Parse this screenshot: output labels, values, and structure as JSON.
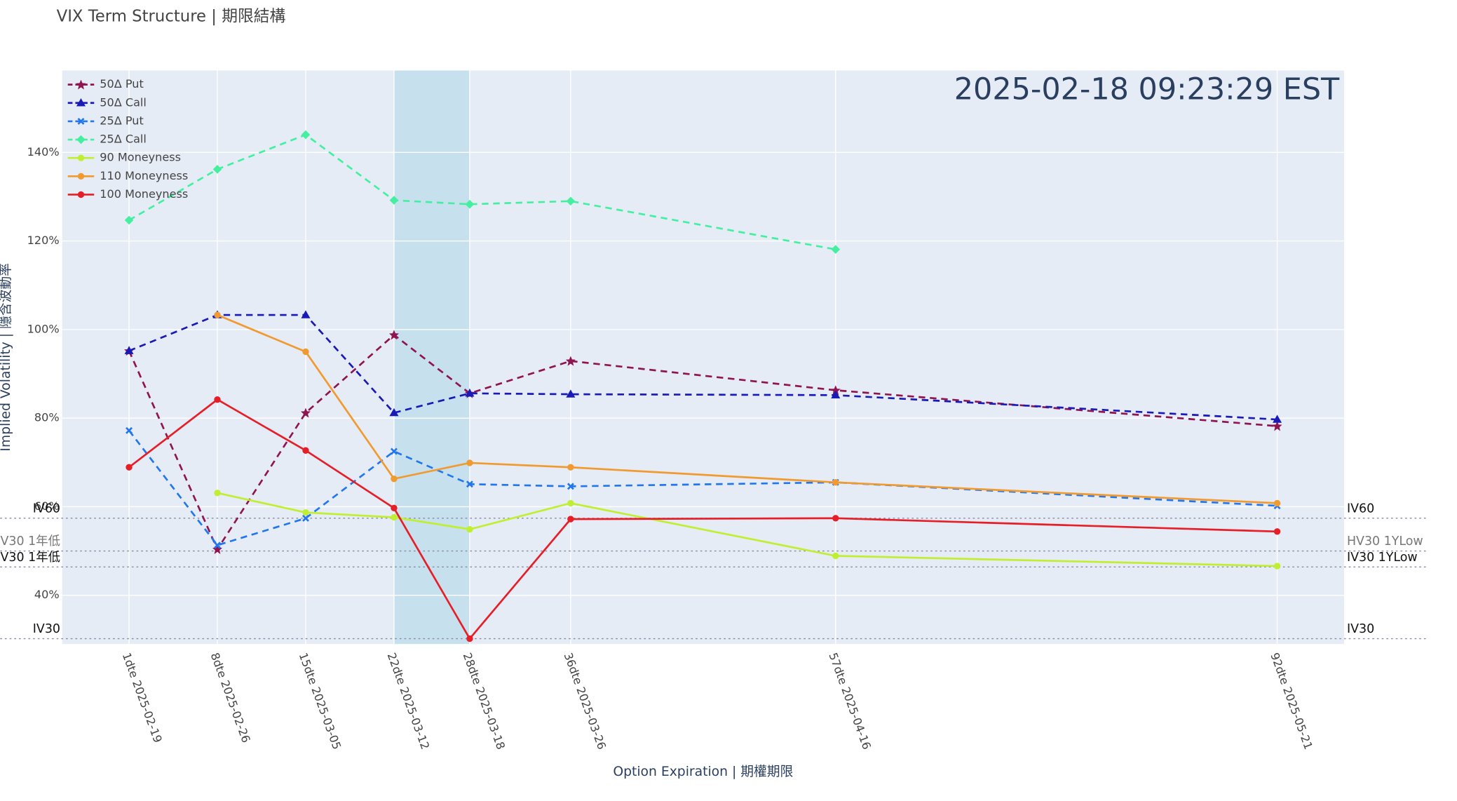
{
  "chart_data": {
    "type": "line",
    "title": "VIX Term Structure | 期限結構",
    "annotation": "2025-02-18 09:23:29 EST",
    "x_label": "Option Expiration | 期權期限",
    "y_label": "Implied Volatility | 隱含波動率",
    "x": [
      1,
      8,
      15,
      22,
      28,
      36,
      57,
      92
    ],
    "xlim": [
      -4.3,
      97.3
    ],
    "xticks": [
      {
        "value": 1,
        "label": "1dte 2025-02-19"
      },
      {
        "value": 8,
        "label": "8dte 2025-02-26"
      },
      {
        "value": 15,
        "label": "15dte 2025-03-05"
      },
      {
        "value": 22,
        "label": "22dte 2025-03-12"
      },
      {
        "value": 28,
        "label": "28dte 2025-03-18"
      },
      {
        "value": 36,
        "label": "36dte 2025-03-26"
      },
      {
        "value": 57,
        "label": "57dte 2025-04-16"
      },
      {
        "value": 92,
        "label": "92dte 2025-05-21"
      }
    ],
    "ylim": [
      29,
      158.5
    ],
    "yticks": [
      {
        "value": 40,
        "label": "40%"
      },
      {
        "value": 60,
        "label": "60%"
      },
      {
        "value": 80,
        "label": "80%"
      },
      {
        "value": 100,
        "label": "100%"
      },
      {
        "value": 120,
        "label": "120%"
      },
      {
        "value": 140,
        "label": "140%"
      }
    ],
    "grid": true,
    "legend": "top-left",
    "shaded_x": [
      22,
      28
    ],
    "reference_lines": [
      {
        "value": 57.4,
        "label_left": "IV60",
        "label_right": "IV60"
      },
      {
        "value": 50.0,
        "label_left": "HV30 1年低",
        "label_right": "HV30 1YLow"
      },
      {
        "value": 46.4,
        "label_left": "IV30 1年低",
        "label_right": "IV30 1YLow"
      },
      {
        "value": 30.2,
        "label_left": "IV30",
        "label_right": "IV30"
      }
    ],
    "series": [
      {
        "name": "50Δ Put",
        "color": "#8e1550",
        "dash": true,
        "symbol": "star",
        "values": [
          95.2,
          50.4,
          81.2,
          98.8,
          85.6,
          92.9,
          86.3,
          78.2
        ]
      },
      {
        "name": "50Δ Call",
        "color": "#1a1ab8",
        "dash": true,
        "symbol": "triangle",
        "values": [
          95.2,
          103.3,
          103.3,
          81.2,
          85.6,
          85.4,
          85.2,
          79.7
        ]
      },
      {
        "name": "25Δ Put",
        "color": "#2277ee",
        "dash": true,
        "symbol": "x",
        "values": [
          77.2,
          51.3,
          57.4,
          72.5,
          65.1,
          64.6,
          65.5,
          60.2
        ]
      },
      {
        "name": "25Δ Call",
        "color": "#44f0a0",
        "dash": true,
        "symbol": "diamond",
        "values": [
          124.7,
          136.2,
          144.0,
          129.2,
          128.3,
          129.0,
          118.1,
          null
        ]
      },
      {
        "name": "90 Moneyness",
        "color": "#c0ee30",
        "dash": false,
        "symbol": "circle",
        "values": [
          null,
          63.1,
          58.7,
          57.6,
          54.9,
          60.8,
          48.9,
          46.6
        ]
      },
      {
        "name": "110 Moneyness",
        "color": "#f09a30",
        "dash": false,
        "symbol": "circle",
        "values": [
          null,
          103.3,
          95.0,
          66.3,
          69.9,
          68.9,
          65.5,
          60.8
        ]
      },
      {
        "name": "100 Moneyness",
        "color": "#e61e28",
        "dash": false,
        "symbol": "circle",
        "values": [
          68.9,
          84.2,
          72.7,
          59.7,
          30.2,
          57.2,
          57.4,
          54.4
        ]
      }
    ]
  }
}
